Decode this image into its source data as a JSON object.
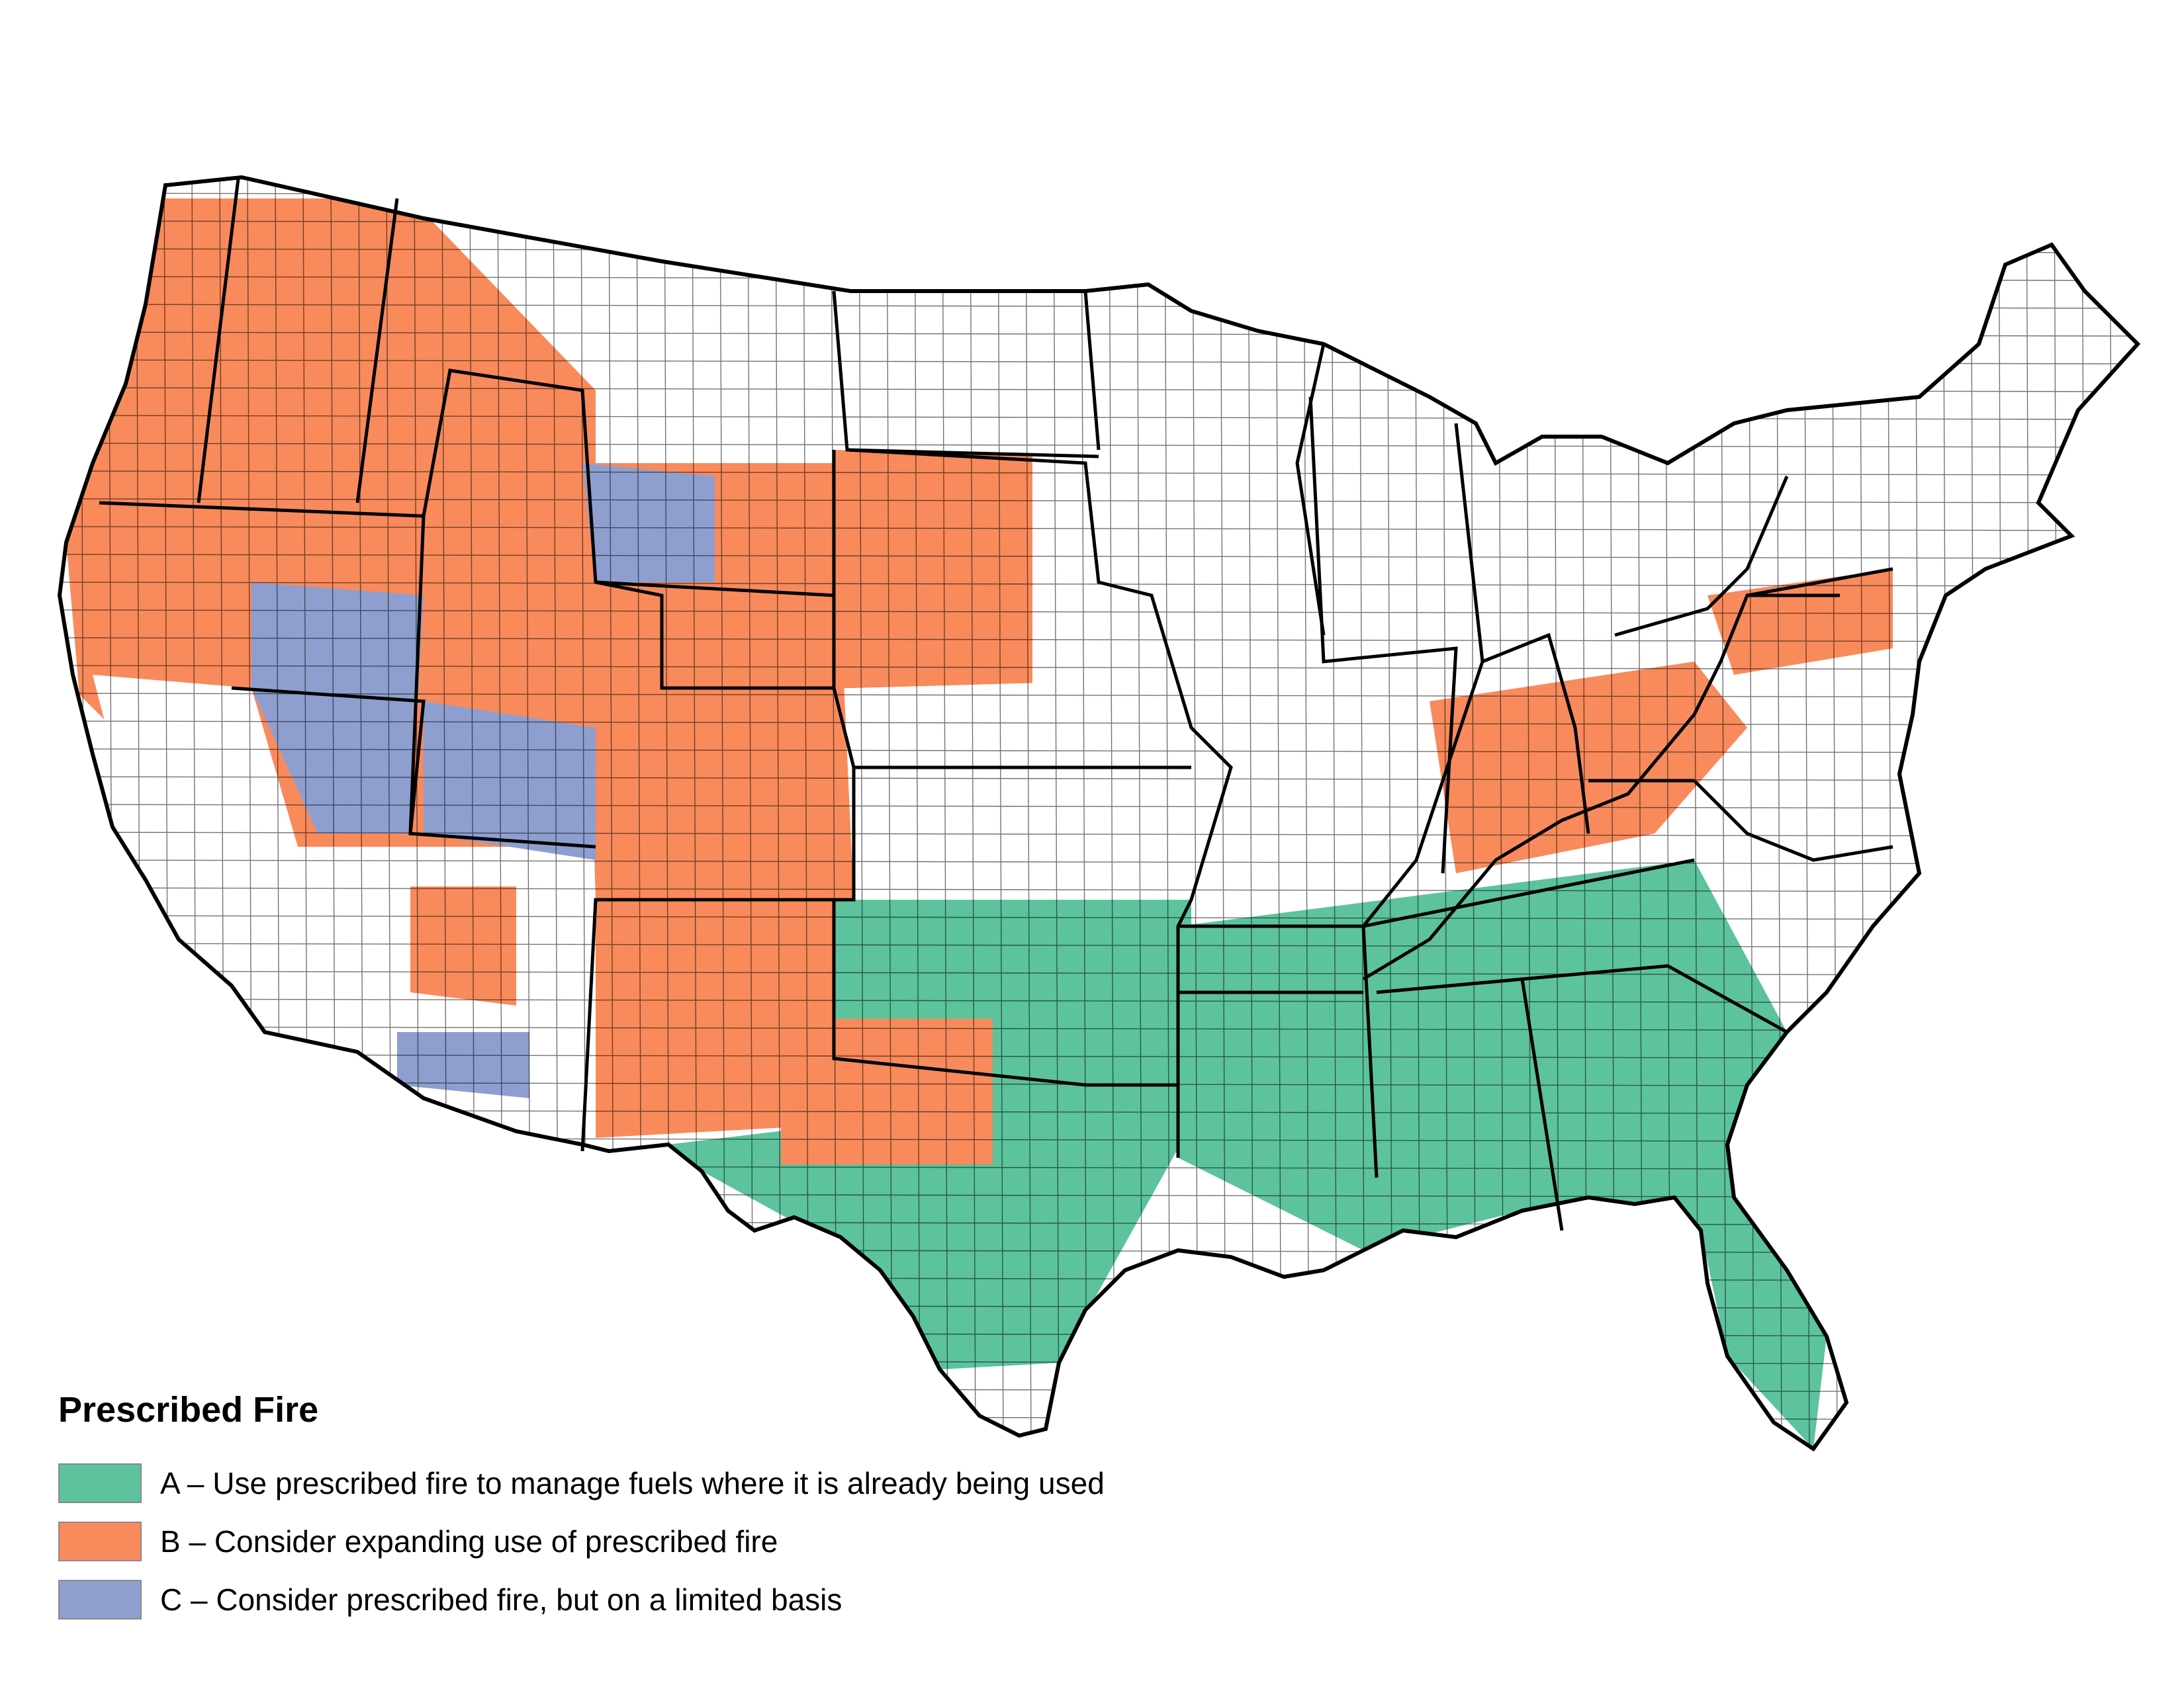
{
  "legend": {
    "title": "Prescribed Fire",
    "items": [
      {
        "code": "A",
        "label": "A – Use prescribed fire to manage fuels where it is already being used",
        "color": "#5cc39d"
      },
      {
        "code": "B",
        "label": "B – Consider expanding use of prescribed fire",
        "color": "#f98a5c"
      },
      {
        "code": "C",
        "label": "C – Consider prescribed fire, but on a limited basis",
        "color": "#8e9fcf"
      }
    ]
  },
  "map": {
    "subject": "contiguous-united-states-counties",
    "background_color": "#ffffff",
    "state_border_color": "#000000",
    "county_border_color": "#000000"
  }
}
